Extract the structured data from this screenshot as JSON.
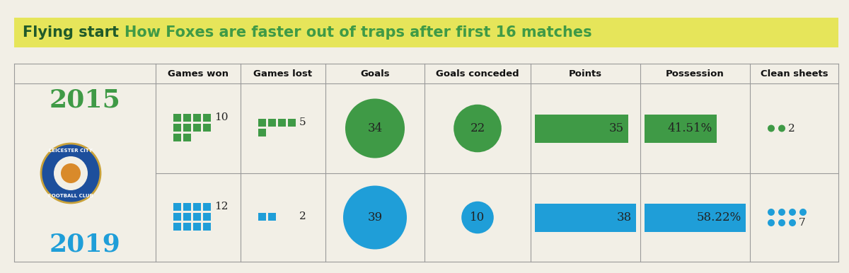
{
  "chart_data": {
    "type": "table",
    "title": "Flying start",
    "subtitle": "How Foxes are faster out of traps after first 16 matches",
    "logo": [
      "LEICESTER CITY",
      "FOOTBALL CLUB"
    ],
    "columns": [
      "Games won",
      "Games lost",
      "Goals",
      "Goals conceded",
      "Points",
      "Possession",
      "Clean sheets"
    ],
    "rows": [
      {
        "name": "2015",
        "color": "#3f9a46",
        "values": [
          10,
          5,
          34,
          22,
          35,
          41.51,
          2
        ],
        "value_labels": [
          "10",
          "5",
          "34",
          "22",
          "35",
          "41.51%",
          "2"
        ]
      },
      {
        "name": "2019",
        "color": "#1f9ed8",
        "values": [
          12,
          2,
          39,
          10,
          38,
          58.22,
          7
        ],
        "value_labels": [
          "12",
          "2",
          "39",
          "10",
          "38",
          "58.22%",
          "7"
        ]
      }
    ]
  }
}
